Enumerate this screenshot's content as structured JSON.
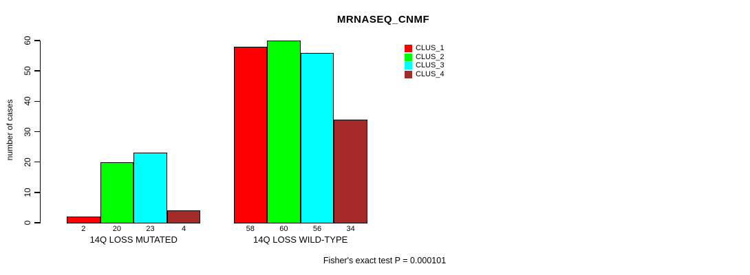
{
  "title": "MRNASEQ_CNMF",
  "footer": "Fisher's exact test P = 0.000101",
  "colors": {
    "clus_1": "#FF0000",
    "clus_2": "#00FF00",
    "clus_3": "#00FFFF",
    "clus_4": "#A52A2A",
    "axis": "#000000",
    "background": "#FFFFFF"
  },
  "chart_data": {
    "type": "bar",
    "title": "MRNASEQ_CNMF",
    "xlabel": "",
    "ylabel": "number of cases",
    "ylim": [
      0,
      60
    ],
    "yticks": [
      0,
      10,
      20,
      30,
      40,
      50,
      60
    ],
    "grid": false,
    "legend_position": "top-right",
    "categories": [
      "14Q LOSS MUTATED",
      "14Q LOSS WILD-TYPE"
    ],
    "series": [
      {
        "name": "CLUS_1",
        "color": "#FF0000",
        "values": [
          2,
          58
        ]
      },
      {
        "name": "CLUS_2",
        "color": "#00FF00",
        "values": [
          20,
          60
        ]
      },
      {
        "name": "CLUS_3",
        "color": "#00FFFF",
        "values": [
          23,
          56
        ]
      },
      {
        "name": "CLUS_4",
        "color": "#A52A2A",
        "values": [
          4,
          34
        ]
      }
    ],
    "bar_value_labels": [
      [
        2,
        20,
        23,
        4
      ],
      [
        58,
        60,
        56,
        34
      ]
    ],
    "annotation": "Fisher's exact test P = 0.000101"
  }
}
